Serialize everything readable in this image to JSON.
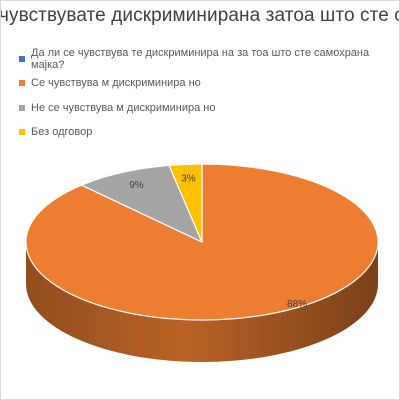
{
  "chart_data": {
    "type": "pie",
    "title": "Дали се чувствувате дискриминирана затоа што сте самохрана мајка?",
    "title_visible": "чувствувате дискриминирана затоа што сте самохрана",
    "legend_position": "top-left",
    "slices": [
      {
        "label": "Да ли се чувствува те дискриминира на за тоа што сте самохрана мајка?",
        "value": 0,
        "display": "",
        "color": "#4472c4"
      },
      {
        "label": "Се чувствува м дискриминира но",
        "value": 88,
        "display": "88%",
        "color": "#ed7d31"
      },
      {
        "label": "Не се чувствува м дискриминира но",
        "value": 9,
        "display": "9%",
        "color": "#a5a5a5"
      },
      {
        "label": "Без одговор",
        "value": 3,
        "display": "3%",
        "color": "#ffc000"
      }
    ]
  }
}
